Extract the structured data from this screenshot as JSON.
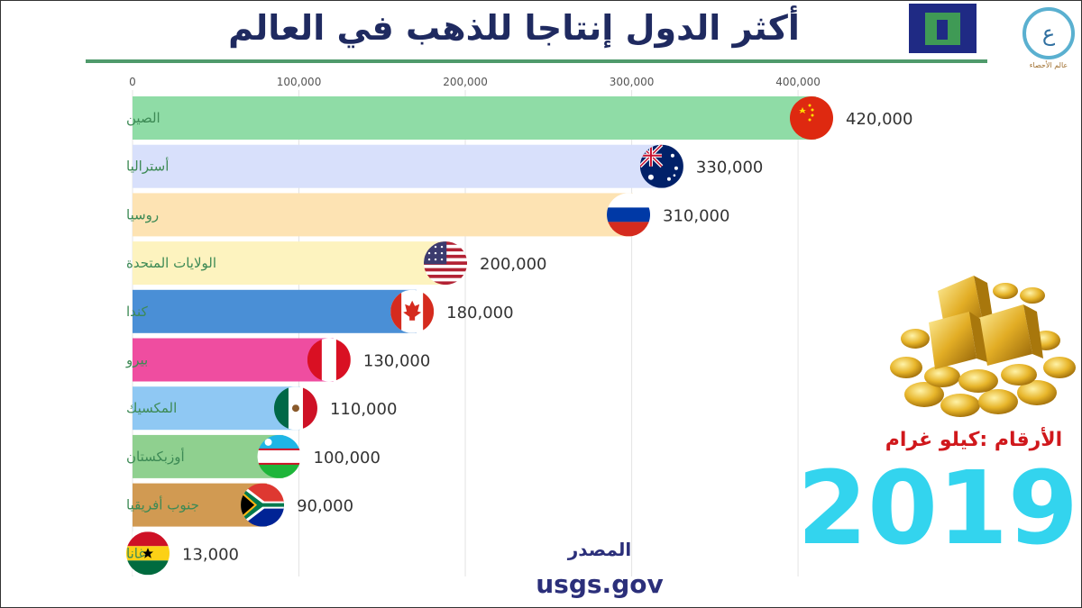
{
  "header": {
    "title": "أكثر الدول إنتاجا للذهب في العالم",
    "logo_caption": "عالم الأحصاء"
  },
  "chart_data": {
    "type": "bar",
    "orientation": "horizontal",
    "categories": [
      "الصين",
      "أستراليا",
      "روسيا",
      "الولايات المتحدة",
      "كندا",
      "بيرو",
      "المكسيك",
      "أوزبكستان",
      "جنوب أفريقيا",
      "غانا"
    ],
    "values": [
      420000,
      330000,
      310000,
      200000,
      180000,
      130000,
      110000,
      100000,
      90000,
      13000
    ],
    "value_labels": [
      "420,000",
      "330,000",
      "310,000",
      "200,000",
      "180,000",
      "130,000",
      "110,000",
      "100,000",
      "90,000",
      "13,000"
    ],
    "bar_colors": [
      "#8fdca6",
      "#d8e0fb",
      "#fde3b3",
      "#fdf3bf",
      "#4a8fd6",
      "#ef4da0",
      "#8fc8f3",
      "#8fd08f",
      "#d19a52",
      "#ffffff"
    ],
    "flags": [
      "china",
      "australia",
      "russia",
      "united-states",
      "canada",
      "peru",
      "mexico",
      "uzbekistan",
      "south-africa",
      "ghana"
    ],
    "xticks": [
      0,
      100000,
      200000,
      300000,
      400000
    ],
    "xtick_labels": [
      "0",
      "100,000",
      "200,000",
      "300,000",
      "400,000"
    ],
    "xlim": [
      0,
      440000
    ],
    "grid": true,
    "title": "أكثر الدول إنتاجا للذهب في العالم"
  },
  "unit_note": "الأرقام :كيلو غرام",
  "year": "2019",
  "source": {
    "label": "المصدر",
    "url": "usgs.gov"
  },
  "colors": {
    "title": "#1f2a60",
    "category_label": "#3d8a55",
    "year": "#33d4ee",
    "unit_note": "#d0181c",
    "source": "#2b2f7a"
  }
}
